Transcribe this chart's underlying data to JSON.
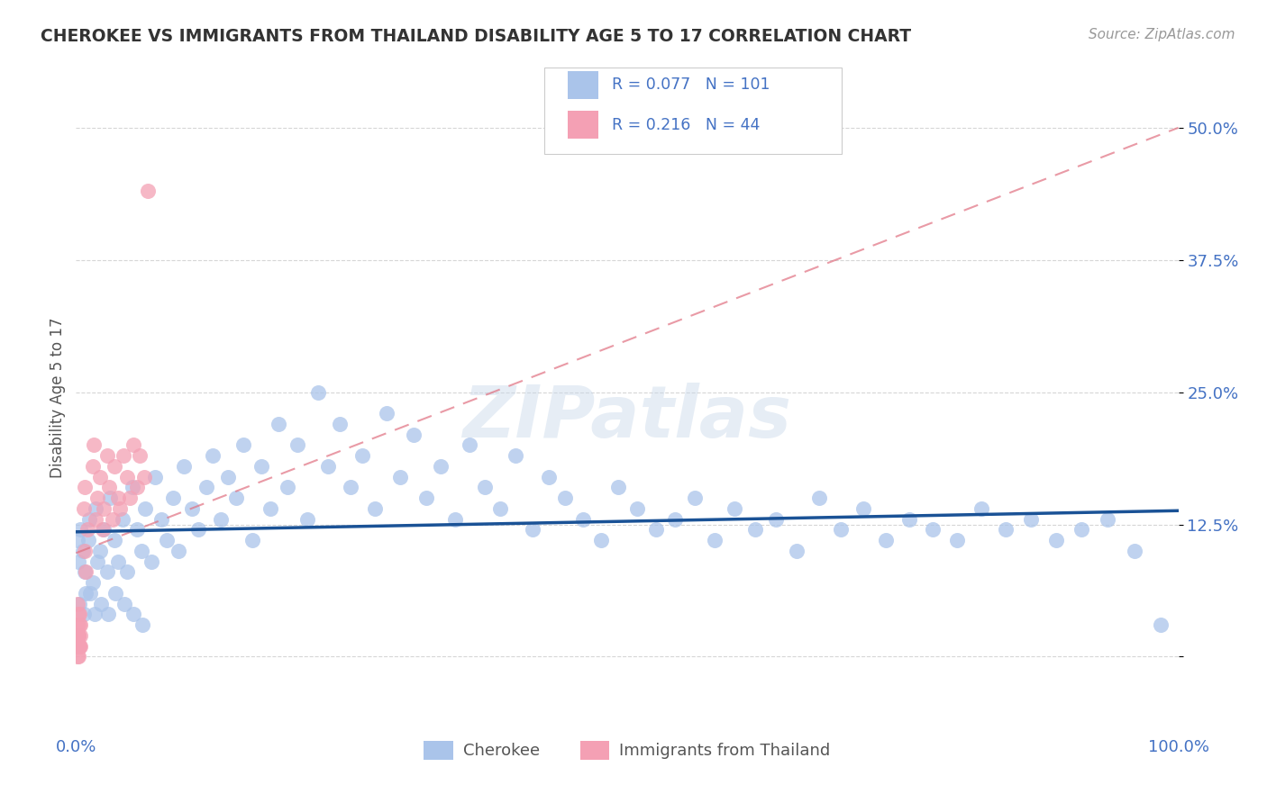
{
  "title": "CHEROKEE VS IMMIGRANTS FROM THAILAND DISABILITY AGE 5 TO 17 CORRELATION CHART",
  "source": "Source: ZipAtlas.com",
  "ylabel": "Disability Age 5 to 17",
  "xlim": [
    0.0,
    1.0
  ],
  "ylim": [
    -0.07,
    0.56
  ],
  "cherokee_R": 0.077,
  "cherokee_N": 101,
  "thailand_R": 0.216,
  "thailand_N": 44,
  "cherokee_color": "#aac4ea",
  "thailand_color": "#f4a0b4",
  "cherokee_line_color": "#1a5296",
  "thailand_line_color": "#e07080",
  "legend_label_1": "Cherokee",
  "legend_label_2": "Immigrants from Thailand",
  "watermark": "ZIPatlas",
  "background_color": "#ffffff",
  "grid_color": "#cccccc",
  "title_color": "#333333",
  "axis_label_color": "#555555",
  "tick_color": "#4472c4",
  "cherokee_line_x0": 0.0,
  "cherokee_line_x1": 1.0,
  "cherokee_line_y0": 0.118,
  "cherokee_line_y1": 0.138,
  "thailand_line_x0": 0.0,
  "thailand_line_x1": 1.0,
  "thailand_line_y0": 0.098,
  "thailand_line_y1": 0.5,
  "cherokee_x": [
    0.004,
    0.002,
    0.001,
    0.008,
    0.006,
    0.012,
    0.015,
    0.011,
    0.009,
    0.018,
    0.022,
    0.019,
    0.025,
    0.028,
    0.031,
    0.035,
    0.038,
    0.042,
    0.046,
    0.051,
    0.055,
    0.059,
    0.063,
    0.068,
    0.072,
    0.077,
    0.082,
    0.088,
    0.093,
    0.098,
    0.105,
    0.111,
    0.118,
    0.124,
    0.131,
    0.138,
    0.145,
    0.152,
    0.16,
    0.168,
    0.176,
    0.184,
    0.192,
    0.201,
    0.21,
    0.22,
    0.229,
    0.239,
    0.249,
    0.26,
    0.271,
    0.282,
    0.294,
    0.306,
    0.318,
    0.331,
    0.344,
    0.357,
    0.371,
    0.385,
    0.399,
    0.414,
    0.429,
    0.444,
    0.46,
    0.476,
    0.492,
    0.509,
    0.526,
    0.543,
    0.561,
    0.579,
    0.597,
    0.616,
    0.635,
    0.654,
    0.674,
    0.694,
    0.714,
    0.735,
    0.756,
    0.777,
    0.799,
    0.821,
    0.843,
    0.866,
    0.889,
    0.912,
    0.936,
    0.96,
    0.984,
    0.003,
    0.007,
    0.013,
    0.017,
    0.023,
    0.029,
    0.036,
    0.044,
    0.052,
    0.06
  ],
  "cherokee_y": [
    0.12,
    0.09,
    0.11,
    0.08,
    0.1,
    0.13,
    0.07,
    0.11,
    0.06,
    0.14,
    0.1,
    0.09,
    0.12,
    0.08,
    0.15,
    0.11,
    0.09,
    0.13,
    0.08,
    0.16,
    0.12,
    0.1,
    0.14,
    0.09,
    0.17,
    0.13,
    0.11,
    0.15,
    0.1,
    0.18,
    0.14,
    0.12,
    0.16,
    0.19,
    0.13,
    0.17,
    0.15,
    0.2,
    0.11,
    0.18,
    0.14,
    0.22,
    0.16,
    0.2,
    0.13,
    0.25,
    0.18,
    0.22,
    0.16,
    0.19,
    0.14,
    0.23,
    0.17,
    0.21,
    0.15,
    0.18,
    0.13,
    0.2,
    0.16,
    0.14,
    0.19,
    0.12,
    0.17,
    0.15,
    0.13,
    0.11,
    0.16,
    0.14,
    0.12,
    0.13,
    0.15,
    0.11,
    0.14,
    0.12,
    0.13,
    0.1,
    0.15,
    0.12,
    0.14,
    0.11,
    0.13,
    0.12,
    0.11,
    0.14,
    0.12,
    0.13,
    0.11,
    0.12,
    0.13,
    0.1,
    0.03,
    0.05,
    0.04,
    0.06,
    0.04,
    0.05,
    0.04,
    0.06,
    0.05,
    0.04,
    0.03
  ],
  "thailand_x": [
    0.001,
    0.002,
    0.001,
    0.003,
    0.002,
    0.001,
    0.004,
    0.002,
    0.003,
    0.001,
    0.002,
    0.003,
    0.004,
    0.002,
    0.001,
    0.003,
    0.002,
    0.004,
    0.008,
    0.009,
    0.007,
    0.01,
    0.008,
    0.015,
    0.018,
    0.016,
    0.019,
    0.022,
    0.025,
    0.028,
    0.024,
    0.03,
    0.033,
    0.035,
    0.038,
    0.04,
    0.043,
    0.046,
    0.049,
    0.052,
    0.055,
    0.058,
    0.062,
    0.065
  ],
  "thailand_y": [
    0.05,
    0.04,
    0.03,
    0.04,
    0.02,
    0.01,
    0.03,
    0.02,
    0.01,
    0.02,
    0.01,
    0.03,
    0.01,
    0.02,
    0.0,
    0.01,
    0.0,
    0.02,
    0.1,
    0.08,
    0.14,
    0.12,
    0.16,
    0.18,
    0.13,
    0.2,
    0.15,
    0.17,
    0.14,
    0.19,
    0.12,
    0.16,
    0.13,
    0.18,
    0.15,
    0.14,
    0.19,
    0.17,
    0.15,
    0.2,
    0.16,
    0.19,
    0.17,
    0.44
  ]
}
